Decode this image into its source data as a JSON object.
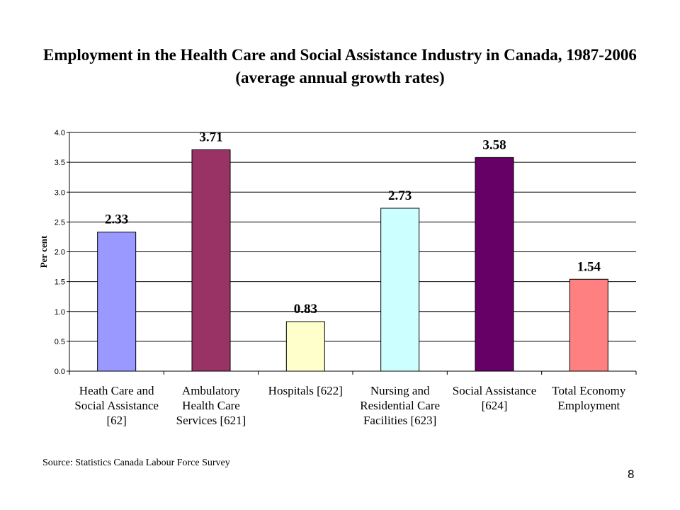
{
  "slide": {
    "title": "Employment in the Health Care and Social Assistance Industry in Canada, 1987-2006 (average annual growth rates)",
    "source": "Source: Statistics Canada Labour Force Survey",
    "page_number": "8"
  },
  "chart_data": {
    "type": "bar",
    "title": "",
    "xlabel": "",
    "ylabel": "Per cent",
    "ylim": [
      0,
      4.0
    ],
    "yticks": [
      "0.0",
      "0.5",
      "1.0",
      "1.5",
      "2.0",
      "2.5",
      "3.0",
      "3.5",
      "4.0"
    ],
    "grid": true,
    "legend": "none",
    "categories": [
      [
        "Heath Care and",
        "Social Assistance",
        "[62]"
      ],
      [
        "Ambulatory",
        "Health Care",
        "Services [621]"
      ],
      [
        "Hospitals [622]"
      ],
      [
        "Nursing and",
        "Residential Care",
        "Facilities [623]"
      ],
      [
        "Social Assistance",
        "[624]"
      ],
      [
        "Total Economy",
        "Employment"
      ]
    ],
    "values": [
      2.33,
      3.71,
      0.83,
      2.73,
      3.58,
      1.54
    ],
    "value_labels": [
      "2.33",
      "3.71",
      "0.83",
      "2.73",
      "3.58",
      "1.54"
    ],
    "colors": [
      "#9999FF",
      "#993366",
      "#FFFFCC",
      "#CCFFFF",
      "#660066",
      "#FF8080"
    ]
  }
}
